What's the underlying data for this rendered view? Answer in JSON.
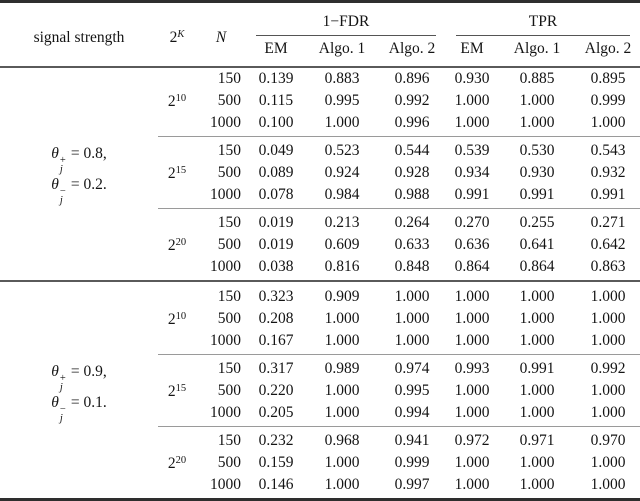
{
  "table": {
    "headers": {
      "signal_strength": "signal strength",
      "k_base": "2",
      "k_sup": "K",
      "n": "N",
      "group1": "1−FDR",
      "group2": "TPR",
      "sub": [
        "EM",
        "Algo. 1",
        "Algo. 2",
        "EM",
        "Algo. 1",
        "Algo. 2"
      ]
    },
    "colors": {
      "heavy_rule": "#2e2e2e",
      "mid_rule": "#5a5a5a",
      "light_rule": "#9a9a9a",
      "text": "#141414",
      "background": "#ffffff"
    },
    "groups": [
      {
        "signal": {
          "sym": "θ",
          "lines": [
            {
              "sup": "+",
              "sub": "j",
              "rhs": "= 0.8,"
            },
            {
              "sup": "−",
              "sub": "j",
              "rhs": "= 0.2."
            }
          ]
        },
        "blocks": [
          {
            "k_base": "2",
            "k_sup": "10",
            "rows": [
              {
                "n": "150",
                "values": [
                  "0.139",
                  "0.883",
                  "0.896",
                  "0.930",
                  "0.885",
                  "0.895"
                ]
              },
              {
                "n": "500",
                "values": [
                  "0.115",
                  "0.995",
                  "0.992",
                  "1.000",
                  "1.000",
                  "0.999"
                ]
              },
              {
                "n": "1000",
                "values": [
                  "0.100",
                  "1.000",
                  "0.996",
                  "1.000",
                  "1.000",
                  "1.000"
                ]
              }
            ]
          },
          {
            "k_base": "2",
            "k_sup": "15",
            "rows": [
              {
                "n": "150",
                "values": [
                  "0.049",
                  "0.523",
                  "0.544",
                  "0.539",
                  "0.530",
                  "0.543"
                ]
              },
              {
                "n": "500",
                "values": [
                  "0.089",
                  "0.924",
                  "0.928",
                  "0.934",
                  "0.930",
                  "0.932"
                ]
              },
              {
                "n": "1000",
                "values": [
                  "0.078",
                  "0.984",
                  "0.988",
                  "0.991",
                  "0.991",
                  "0.991"
                ]
              }
            ]
          },
          {
            "k_base": "2",
            "k_sup": "20",
            "rows": [
              {
                "n": "150",
                "values": [
                  "0.019",
                  "0.213",
                  "0.264",
                  "0.270",
                  "0.255",
                  "0.271"
                ]
              },
              {
                "n": "500",
                "values": [
                  "0.019",
                  "0.609",
                  "0.633",
                  "0.636",
                  "0.641",
                  "0.642"
                ]
              },
              {
                "n": "1000",
                "values": [
                  "0.038",
                  "0.816",
                  "0.848",
                  "0.864",
                  "0.864",
                  "0.863"
                ]
              }
            ]
          }
        ]
      },
      {
        "signal": {
          "sym": "θ",
          "lines": [
            {
              "sup": "+",
              "sub": "j",
              "rhs": "= 0.9,"
            },
            {
              "sup": "−",
              "sub": "j",
              "rhs": "= 0.1."
            }
          ]
        },
        "blocks": [
          {
            "k_base": "2",
            "k_sup": "10",
            "rows": [
              {
                "n": "150",
                "values": [
                  "0.323",
                  "0.909",
                  "1.000",
                  "1.000",
                  "1.000",
                  "1.000"
                ]
              },
              {
                "n": "500",
                "values": [
                  "0.208",
                  "1.000",
                  "1.000",
                  "1.000",
                  "1.000",
                  "1.000"
                ]
              },
              {
                "n": "1000",
                "values": [
                  "0.167",
                  "1.000",
                  "1.000",
                  "1.000",
                  "1.000",
                  "1.000"
                ]
              }
            ]
          },
          {
            "k_base": "2",
            "k_sup": "15",
            "rows": [
              {
                "n": "150",
                "values": [
                  "0.317",
                  "0.989",
                  "0.974",
                  "0.993",
                  "0.991",
                  "0.992"
                ]
              },
              {
                "n": "500",
                "values": [
                  "0.220",
                  "1.000",
                  "0.995",
                  "1.000",
                  "1.000",
                  "1.000"
                ]
              },
              {
                "n": "1000",
                "values": [
                  "0.205",
                  "1.000",
                  "0.994",
                  "1.000",
                  "1.000",
                  "1.000"
                ]
              }
            ]
          },
          {
            "k_base": "2",
            "k_sup": "20",
            "rows": [
              {
                "n": "150",
                "values": [
                  "0.232",
                  "0.968",
                  "0.941",
                  "0.972",
                  "0.971",
                  "0.970"
                ]
              },
              {
                "n": "500",
                "values": [
                  "0.159",
                  "1.000",
                  "0.999",
                  "1.000",
                  "1.000",
                  "1.000"
                ]
              },
              {
                "n": "1000",
                "values": [
                  "0.146",
                  "1.000",
                  "0.997",
                  "1.000",
                  "1.000",
                  "1.000"
                ]
              }
            ]
          }
        ]
      }
    ]
  }
}
